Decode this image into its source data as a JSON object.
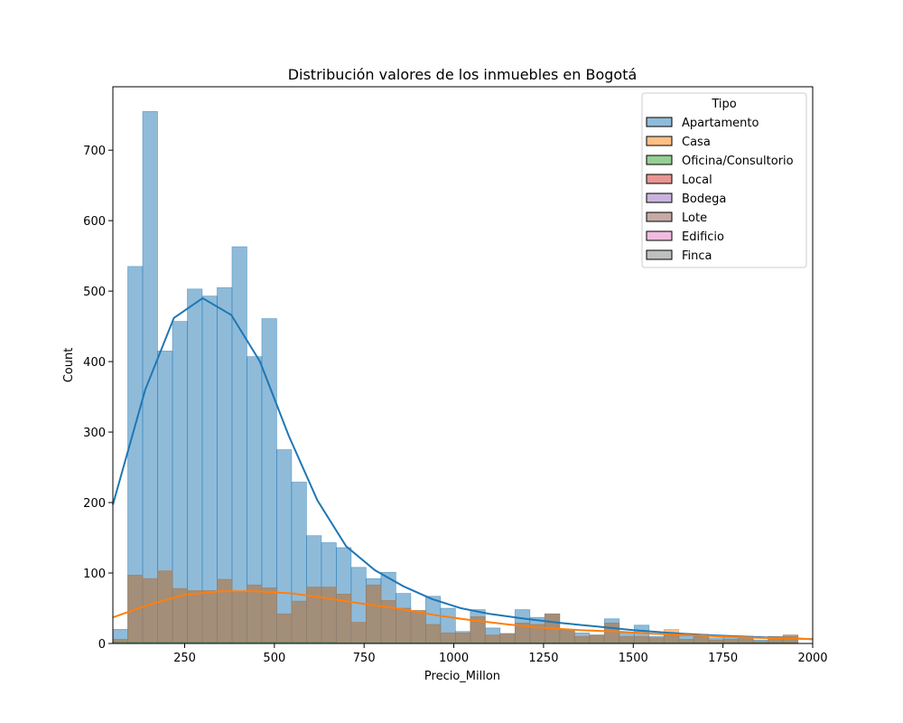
{
  "chart_data": {
    "type": "bar",
    "title": "Distribución valores de los inmuebles en Bogotá",
    "xlabel": "Precio_Millon",
    "ylabel": "Count",
    "xlim": [
      50,
      2000
    ],
    "ylim": [
      0,
      790
    ],
    "xticks": [
      250,
      500,
      750,
      1000,
      1250,
      1500,
      1750,
      2000
    ],
    "yticks": [
      0,
      100,
      200,
      300,
      400,
      500,
      600,
      700
    ],
    "bin_width": 41.5,
    "bin_start": 50,
    "legend": {
      "title": "Tipo",
      "position": "top-right",
      "entries": [
        "Apartamento",
        "Casa",
        "Oficina/Consultorio",
        "Local",
        "Bodega",
        "Lote",
        "Edificio",
        "Finca"
      ]
    },
    "colors": {
      "Apartamento": "#1f77b4",
      "Casa": "#ff7f0e",
      "Oficina/Consultorio": "#2ca02c",
      "Local": "#d62728",
      "Bodega": "#9467bd",
      "Lote": "#8c564b",
      "Edificio": "#e377c2",
      "Finca": "#7f7f7f"
    },
    "series": [
      {
        "name": "Apartamento",
        "values": [
          20,
          535,
          755,
          415,
          457,
          503,
          493,
          505,
          563,
          407,
          461,
          275,
          229,
          153,
          143,
          136,
          108,
          92,
          101,
          71,
          45,
          67,
          50,
          17,
          48,
          22,
          14,
          48,
          37,
          42,
          20,
          15,
          12,
          35,
          15,
          26,
          10,
          15,
          11,
          13,
          8,
          10,
          10,
          5,
          7,
          10
        ]
      },
      {
        "name": "Casa",
        "values": [
          6,
          97,
          92,
          103,
          78,
          75,
          75,
          91,
          73,
          83,
          79,
          42,
          60,
          80,
          80,
          70,
          30,
          83,
          61,
          50,
          47,
          27,
          15,
          15,
          38,
          12,
          14,
          29,
          27,
          42,
          19,
          10,
          12,
          29,
          10,
          10,
          8,
          20,
          6,
          10,
          5,
          6,
          10,
          3,
          10,
          12
        ]
      },
      {
        "name": "Oficina/Consultorio",
        "values": [
          2,
          2,
          2,
          2,
          2,
          2,
          2,
          2,
          2,
          2,
          2,
          2,
          2,
          2,
          2,
          1,
          1,
          1,
          1,
          1,
          1,
          1,
          1,
          1,
          1,
          1,
          1,
          1,
          1,
          1,
          1,
          1,
          1,
          1,
          1,
          1,
          1,
          1,
          1,
          1,
          1,
          1,
          1,
          1,
          1,
          1
        ]
      },
      {
        "name": "Finca",
        "values": [
          6,
          97,
          92,
          103,
          78,
          75,
          75,
          91,
          73,
          83,
          79,
          42,
          60,
          80,
          80,
          70,
          30,
          83,
          61,
          50,
          47,
          27,
          15,
          15,
          38,
          12,
          14,
          29,
          27,
          42,
          19,
          10,
          12,
          29,
          10,
          10,
          8,
          15,
          6,
          10,
          5,
          6,
          10,
          3,
          10,
          12
        ]
      }
    ],
    "kde": [
      {
        "name": "Apartamento",
        "x": [
          50,
          140,
          220,
          300,
          380,
          460,
          540,
          620,
          700,
          780,
          860,
          940,
          1020,
          1100,
          1200,
          1300,
          1400,
          1500,
          1600,
          1700,
          1800,
          1900,
          2000
        ],
        "y": [
          197,
          360,
          462,
          490,
          466,
          400,
          295,
          203,
          138,
          104,
          81,
          63,
          50,
          42,
          35,
          29,
          24,
          19,
          15,
          12,
          10,
          8,
          6
        ]
      },
      {
        "name": "Casa",
        "x": [
          50,
          150,
          250,
          350,
          450,
          550,
          650,
          750,
          850,
          950,
          1050,
          1150,
          1250,
          1350,
          1450,
          1550,
          1650,
          1750,
          1850,
          1950,
          2000
        ],
        "y": [
          37,
          55,
          69,
          74,
          74,
          71,
          64,
          56,
          49,
          40,
          33,
          27,
          22,
          19,
          17,
          14,
          12,
          10,
          8,
          7,
          6
        ]
      }
    ]
  }
}
